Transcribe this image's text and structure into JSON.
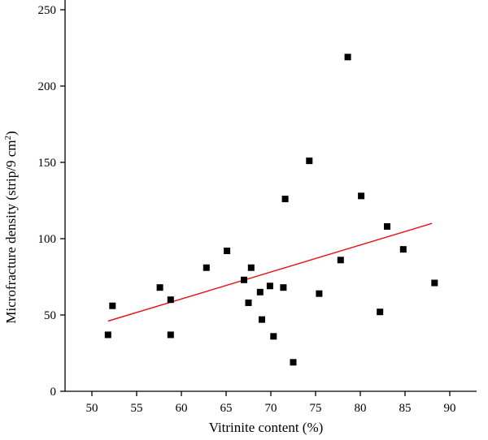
{
  "chart_data": {
    "type": "scatter",
    "title": "",
    "xlabel": "Vitrinite content (%)",
    "ylabel_prefix": "Microfracture density (strip/9 cm",
    "ylabel_sup": "2",
    "ylabel_suffix": ")",
    "xlim": [
      47,
      93
    ],
    "ylim": [
      0,
      250
    ],
    "xticks": [
      50,
      55,
      60,
      65,
      70,
      75,
      80,
      85,
      90
    ],
    "yticks": [
      0,
      50,
      100,
      150,
      200,
      250
    ],
    "grid": false,
    "legend": "none",
    "marker_color": "#000000",
    "trendline_color": "#e8141e",
    "points": [
      {
        "x": 51.8,
        "y": 37
      },
      {
        "x": 52.3,
        "y": 56
      },
      {
        "x": 57.6,
        "y": 68
      },
      {
        "x": 58.8,
        "y": 60
      },
      {
        "x": 58.8,
        "y": 37
      },
      {
        "x": 62.8,
        "y": 81
      },
      {
        "x": 65.1,
        "y": 92
      },
      {
        "x": 67.0,
        "y": 73
      },
      {
        "x": 67.5,
        "y": 58
      },
      {
        "x": 67.8,
        "y": 81
      },
      {
        "x": 68.8,
        "y": 65
      },
      {
        "x": 69.0,
        "y": 47
      },
      {
        "x": 69.9,
        "y": 69
      },
      {
        "x": 70.3,
        "y": 36
      },
      {
        "x": 71.4,
        "y": 68
      },
      {
        "x": 71.6,
        "y": 126
      },
      {
        "x": 72.5,
        "y": 19
      },
      {
        "x": 74.3,
        "y": 151
      },
      {
        "x": 75.4,
        "y": 64
      },
      {
        "x": 77.8,
        "y": 86
      },
      {
        "x": 78.6,
        "y": 219
      },
      {
        "x": 80.1,
        "y": 128
      },
      {
        "x": 82.2,
        "y": 52
      },
      {
        "x": 83.0,
        "y": 108
      },
      {
        "x": 84.8,
        "y": 93
      },
      {
        "x": 88.3,
        "y": 71
      }
    ],
    "trendline": {
      "x": [
        51.8,
        88.0
      ],
      "y": [
        46,
        110
      ]
    }
  }
}
